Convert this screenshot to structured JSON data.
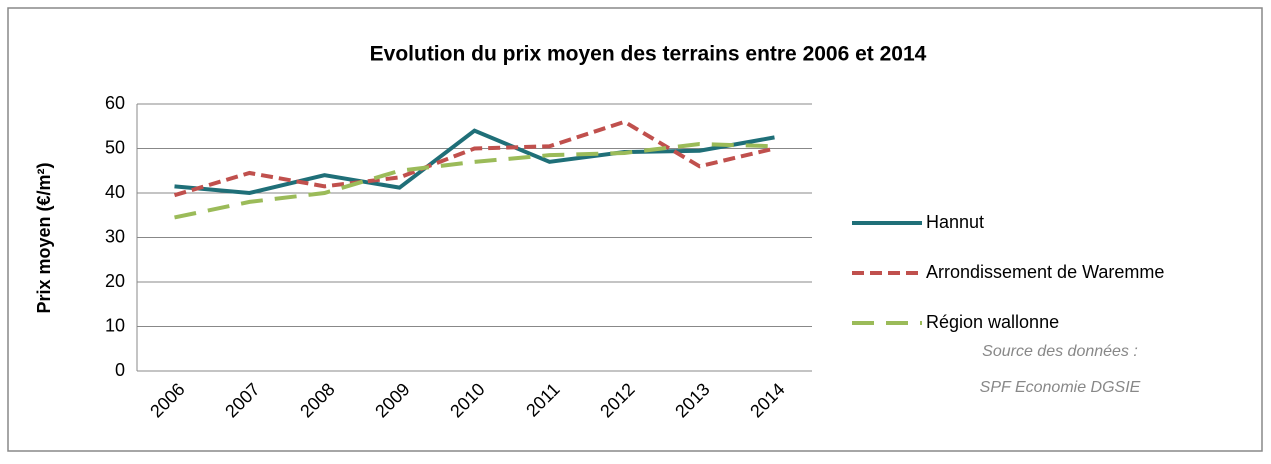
{
  "chart_data": {
    "type": "line",
    "title": "Evolution du prix moyen des terrains entre 2006 et 2014",
    "ylabel": "Prix moyen (€/m²)",
    "categories": [
      "2006",
      "2007",
      "2008",
      "2009",
      "2010",
      "2011",
      "2012",
      "2013",
      "2014"
    ],
    "series": [
      {
        "name": "Hannut",
        "color": "#1f6f78",
        "dash": "solid",
        "values": [
          41.5,
          40,
          44,
          41.2,
          54,
          47,
          49.2,
          49.5,
          52.5
        ]
      },
      {
        "name": "Arrondissement de Waremme",
        "color": "#c0504d",
        "dash": "short",
        "values": [
          39.5,
          44.5,
          41.5,
          43.5,
          50,
          50.5,
          56,
          46,
          50
        ]
      },
      {
        "name": "Région wallonne",
        "color": "#9bbb59",
        "dash": "long",
        "values": [
          34.5,
          38,
          40,
          45,
          47,
          48.5,
          49,
          51,
          50.5
        ]
      }
    ],
    "ylim": [
      0,
      60
    ],
    "yticks": [
      0,
      10,
      20,
      30,
      40,
      50,
      60
    ],
    "grid": true,
    "legend": "right",
    "source": [
      "Source des données :",
      "SPF Economie DGSIE"
    ]
  }
}
